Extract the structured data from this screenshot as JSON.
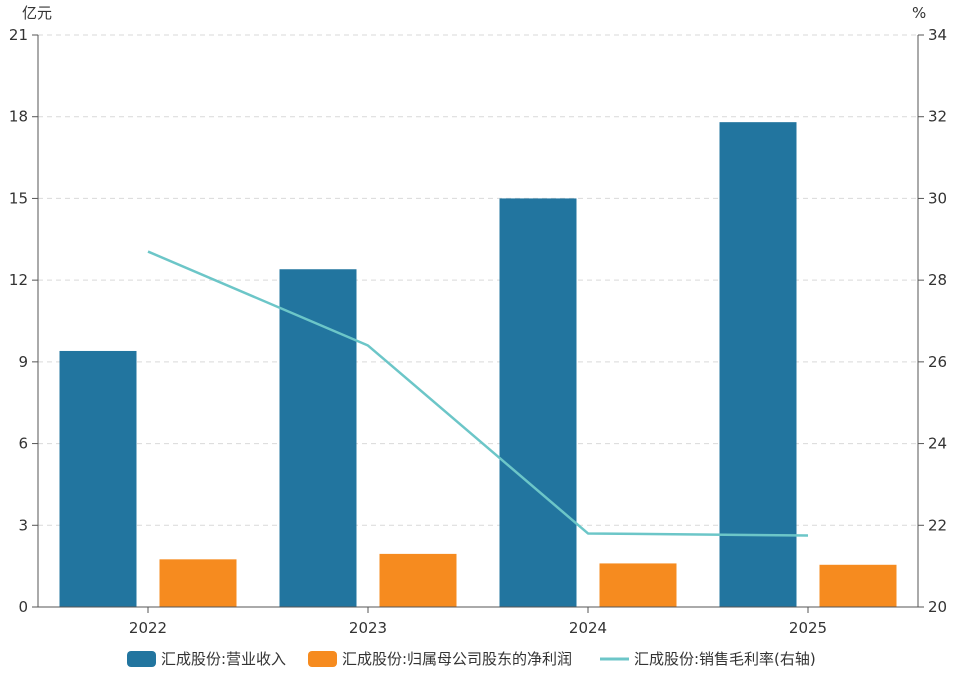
{
  "chart_data": {
    "type": "bar",
    "categories": [
      "2022",
      "2023",
      "2024",
      "2025"
    ],
    "left_unit": "亿元",
    "right_unit": "%",
    "ylim_left": [
      0,
      21
    ],
    "yticks_left": [
      "0",
      "3",
      "6",
      "9",
      "12",
      "15",
      "18",
      "21"
    ],
    "ylim_right": [
      20,
      34
    ],
    "yticks_right": [
      "20",
      "22",
      "24",
      "26",
      "28",
      "30",
      "32",
      "34"
    ],
    "grid": "horizontal dashed",
    "legend_position": "bottom",
    "series": [
      {
        "name": "汇成股份:营业收入",
        "type": "bar",
        "axis": "left",
        "color": "#22759f",
        "values": [
          9.4,
          12.4,
          15.0,
          17.8
        ]
      },
      {
        "name": "汇成股份:归属母公司股东的净利润",
        "type": "bar",
        "axis": "left",
        "color": "#f68b1f",
        "values": [
          1.75,
          1.95,
          1.6,
          1.55
        ]
      },
      {
        "name": "汇成股份:销售毛利率(右轴)",
        "type": "line",
        "axis": "right",
        "color": "#6cc6c8",
        "values": [
          28.7,
          26.4,
          21.8,
          21.75
        ]
      }
    ]
  }
}
